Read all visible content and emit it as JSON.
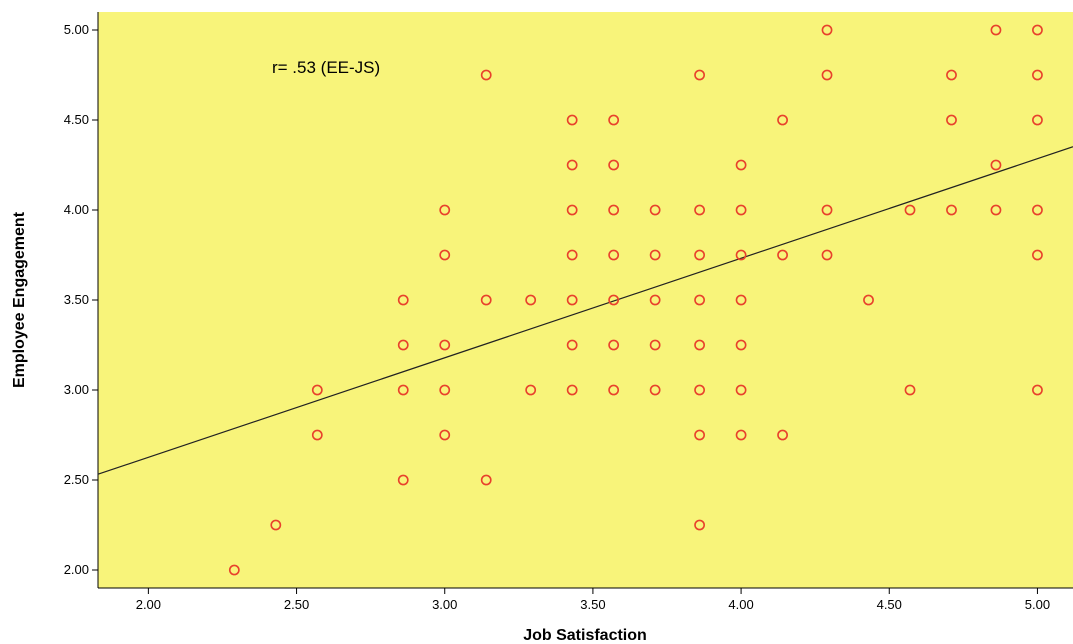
{
  "chart_data": {
    "type": "scatter",
    "xlabel": "Job Satisfaction",
    "ylabel": "Employee Engagement",
    "annotation": "r= .53 (EE-JS)",
    "xlim": [
      1.83,
      5.12
    ],
    "ylim": [
      1.9,
      5.1
    ],
    "x_ticks": [
      "2.00",
      "2.50",
      "3.00",
      "3.50",
      "4.00",
      "4.50",
      "5.00"
    ],
    "y_ticks": [
      "2.00",
      "2.50",
      "3.00",
      "3.50",
      "4.00",
      "4.50",
      "5.00"
    ],
    "grid": false,
    "fit_line": {
      "slope": 0.553,
      "intercept": 1.52
    },
    "colors": {
      "plot_background": "#f8f47a",
      "marker": "#e8412c",
      "fit_line": "#222222"
    },
    "points": [
      [
        2.29,
        2.0
      ],
      [
        2.43,
        2.25
      ],
      [
        2.57,
        3.0
      ],
      [
        2.57,
        2.75
      ],
      [
        2.86,
        3.5
      ],
      [
        2.86,
        3.25
      ],
      [
        2.86,
        3.0
      ],
      [
        2.86,
        2.5
      ],
      [
        3.0,
        4.0
      ],
      [
        3.0,
        3.75
      ],
      [
        3.0,
        3.25
      ],
      [
        3.0,
        3.0
      ],
      [
        3.0,
        2.75
      ],
      [
        3.14,
        4.75
      ],
      [
        3.14,
        3.5
      ],
      [
        3.14,
        2.5
      ],
      [
        3.29,
        3.5
      ],
      [
        3.29,
        3.0
      ],
      [
        3.43,
        4.5
      ],
      [
        3.43,
        4.25
      ],
      [
        3.43,
        4.0
      ],
      [
        3.43,
        3.75
      ],
      [
        3.43,
        3.5
      ],
      [
        3.43,
        3.25
      ],
      [
        3.43,
        3.0
      ],
      [
        3.57,
        4.5
      ],
      [
        3.57,
        4.25
      ],
      [
        3.57,
        4.0
      ],
      [
        3.57,
        3.75
      ],
      [
        3.57,
        3.5
      ],
      [
        3.57,
        3.25
      ],
      [
        3.57,
        3.0
      ],
      [
        3.71,
        4.0
      ],
      [
        3.71,
        3.75
      ],
      [
        3.71,
        3.5
      ],
      [
        3.71,
        3.25
      ],
      [
        3.71,
        3.0
      ],
      [
        3.86,
        4.75
      ],
      [
        3.86,
        4.0
      ],
      [
        3.86,
        3.75
      ],
      [
        3.86,
        3.5
      ],
      [
        3.86,
        3.25
      ],
      [
        3.86,
        3.0
      ],
      [
        3.86,
        2.75
      ],
      [
        3.86,
        2.25
      ],
      [
        4.0,
        4.25
      ],
      [
        4.0,
        4.0
      ],
      [
        4.0,
        3.75
      ],
      [
        4.0,
        3.5
      ],
      [
        4.0,
        3.25
      ],
      [
        4.0,
        3.0
      ],
      [
        4.0,
        2.75
      ],
      [
        4.14,
        4.5
      ],
      [
        4.14,
        3.75
      ],
      [
        4.14,
        2.75
      ],
      [
        4.29,
        5.0
      ],
      [
        4.29,
        4.75
      ],
      [
        4.29,
        4.0
      ],
      [
        4.29,
        3.75
      ],
      [
        4.43,
        3.5
      ],
      [
        4.57,
        4.0
      ],
      [
        4.57,
        3.0
      ],
      [
        4.71,
        4.75
      ],
      [
        4.71,
        4.5
      ],
      [
        4.71,
        4.0
      ],
      [
        4.86,
        5.0
      ],
      [
        4.86,
        4.25
      ],
      [
        4.86,
        4.0
      ],
      [
        5.0,
        5.0
      ],
      [
        5.0,
        4.75
      ],
      [
        5.0,
        4.5
      ],
      [
        5.0,
        4.0
      ],
      [
        5.0,
        3.75
      ],
      [
        5.0,
        3.0
      ]
    ]
  }
}
